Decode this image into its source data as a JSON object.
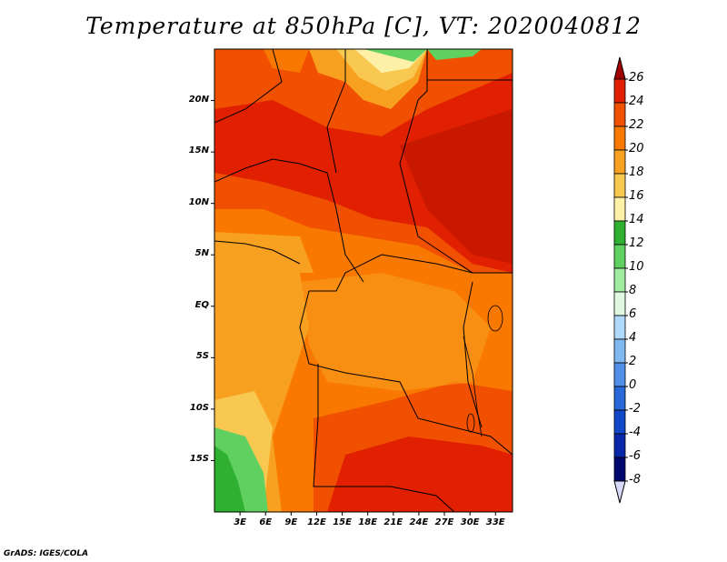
{
  "title": "Temperature at 850hPa [C], VT: 2020040812",
  "credit": "GrADS: IGES/COLA",
  "map": {
    "lat_labels": [
      "20N",
      "15N",
      "10N",
      "5N",
      "EQ",
      "5S",
      "10S",
      "15S"
    ],
    "lat_values": [
      20,
      15,
      10,
      5,
      0,
      -5,
      -10,
      -15
    ],
    "lon_labels": [
      "3E",
      "6E",
      "9E",
      "12E",
      "15E",
      "18E",
      "21E",
      "24E",
      "27E",
      "30E",
      "33E"
    ],
    "lon_values": [
      3,
      6,
      9,
      12,
      15,
      18,
      21,
      24,
      27,
      30,
      33
    ],
    "lon_range": [
      0,
      35
    ],
    "lat_range": [
      -20,
      25
    ]
  },
  "colorbar": {
    "labels": [
      "26",
      "24",
      "22",
      "20",
      "18",
      "16",
      "14",
      "12",
      "10",
      "8",
      "6",
      "4",
      "2",
      "0",
      "-2",
      "-4",
      "-6",
      "-8"
    ],
    "colors": [
      "#a00000",
      "#e02000",
      "#f05000",
      "#f87800",
      "#f8a020",
      "#f8c850",
      "#fff0a8",
      "#30b030",
      "#60d060",
      "#a0eca0",
      "#e0f8e0",
      "#b0d8f8",
      "#80b8f0",
      "#5090e8",
      "#2868d8",
      "#1048c8",
      "#0828a8",
      "#000870",
      "#d8d8f8"
    ]
  }
}
